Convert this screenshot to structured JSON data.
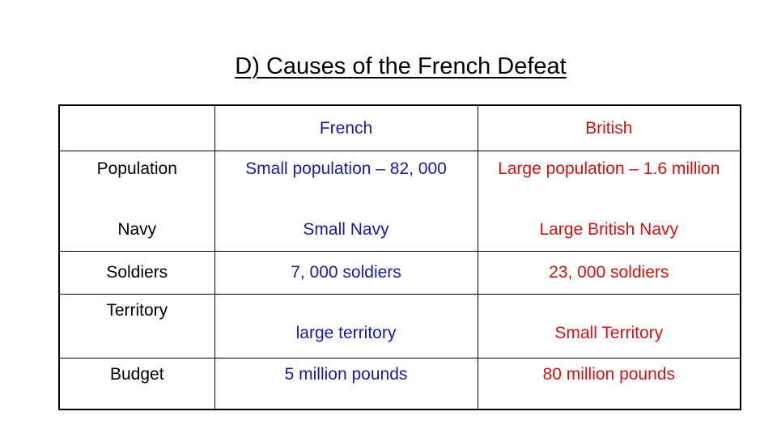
{
  "slide": {
    "title": "D) Causes of the French Defeat"
  },
  "table": {
    "headers": [
      "",
      "French",
      "British"
    ],
    "rows": [
      {
        "label": "Population",
        "french": "Small population – 82, 000",
        "british": "Large population – 1.6 million"
      },
      {
        "label": "Navy",
        "french": "Small Navy",
        "british": "Large British Navy"
      },
      {
        "label": "Soldiers",
        "french": "7, 000 soldiers",
        "british": "23, 000 soldiers"
      },
      {
        "label": "Territory",
        "french": "large territory",
        "british": "Small Territory"
      },
      {
        "label": "Budget",
        "french": "5 million pounds",
        "british": "80 million pounds"
      }
    ]
  },
  "colors": {
    "french": "#1a1aa0",
    "british": "#cc1414"
  }
}
